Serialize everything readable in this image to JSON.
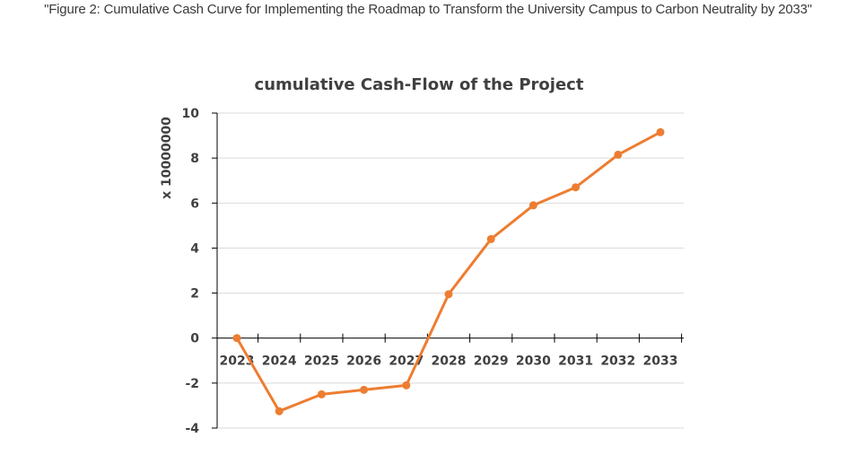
{
  "caption": "\"Figure 2: Cumulative Cash Curve for Implementing the Roadmap to Transform the University Campus to Carbon Neutrality by 2033\"",
  "chart_data": {
    "type": "line",
    "title": "cumulative Cash-Flow of the Project",
    "xlabel": "",
    "ylabel": "x 10000000",
    "categories": [
      "2023",
      "2024",
      "2025",
      "2026",
      "2027",
      "2028",
      "2029",
      "2030",
      "2031",
      "2032",
      "2033"
    ],
    "series": [
      {
        "values": [
          0,
          -3.25,
          -2.5,
          -2.3,
          -2.1,
          1.95,
          4.4,
          5.9,
          6.7,
          8.15,
          9.15
        ]
      }
    ],
    "ylim": [
      -4,
      10
    ],
    "yticks": [
      -4,
      -2,
      0,
      2,
      4,
      6,
      8,
      10
    ],
    "grid": true,
    "colors": {
      "line": "#ED7D31",
      "grid": "#D9D9D9",
      "axis": "#000000",
      "text": "#404040"
    }
  }
}
